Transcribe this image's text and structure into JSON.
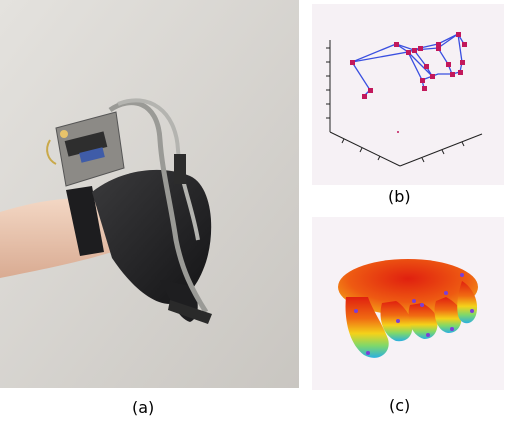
{
  "figure": {
    "panels": [
      {
        "id": "a",
        "caption": "(a)",
        "content": "photo-hand-with-glove-sensor"
      },
      {
        "id": "b",
        "caption": "(b)",
        "content": "3d-skeleton-plot"
      },
      {
        "id": "c",
        "caption": "(c)",
        "content": "3d-hand-model-render"
      }
    ]
  },
  "colors": {
    "skeleton_line": "#3a4fe0",
    "skeleton_joint": "#c2185b",
    "model_hot": "#e02010",
    "model_cool": "#2ab0e0",
    "wall": "#d6d3cf"
  }
}
